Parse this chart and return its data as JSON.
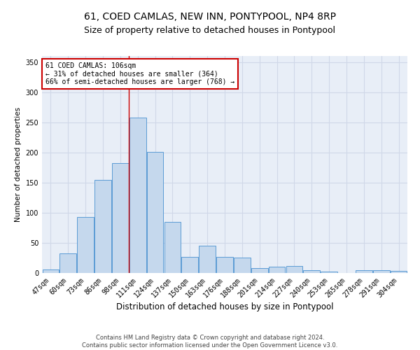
{
  "title": "61, COED CAMLAS, NEW INN, PONTYPOOL, NP4 8RP",
  "subtitle": "Size of property relative to detached houses in Pontypool",
  "xlabel": "Distribution of detached houses by size in Pontypool",
  "ylabel": "Number of detached properties",
  "categories": [
    "47sqm",
    "60sqm",
    "73sqm",
    "86sqm",
    "98sqm",
    "111sqm",
    "124sqm",
    "137sqm",
    "150sqm",
    "163sqm",
    "176sqm",
    "188sqm",
    "201sqm",
    "214sqm",
    "227sqm",
    "240sqm",
    "253sqm",
    "265sqm",
    "278sqm",
    "291sqm",
    "304sqm"
  ],
  "values": [
    6,
    32,
    93,
    155,
    182,
    258,
    201,
    85,
    27,
    45,
    27,
    26,
    8,
    10,
    12,
    5,
    2,
    0,
    5,
    5,
    3
  ],
  "bar_color": "#c5d8ed",
  "bar_edge_color": "#5b9bd5",
  "annotation_title": "61 COED CAMLAS: 106sqm",
  "annotation_line1": "← 31% of detached houses are smaller (364)",
  "annotation_line2": "66% of semi-detached houses are larger (768) →",
  "annotation_box_color": "#ffffff",
  "annotation_border_color": "#cc0000",
  "vline_color": "#cc0000",
  "vline_x_index": 4,
  "ylim": [
    0,
    360
  ],
  "yticks": [
    0,
    50,
    100,
    150,
    200,
    250,
    300,
    350
  ],
  "grid_color": "#d0d8e8",
  "background_color": "#e8eef7",
  "footer1": "Contains HM Land Registry data © Crown copyright and database right 2024.",
  "footer2": "Contains public sector information licensed under the Open Government Licence v3.0.",
  "title_fontsize": 10,
  "subtitle_fontsize": 9,
  "xlabel_fontsize": 8.5,
  "ylabel_fontsize": 7.5,
  "tick_fontsize": 7,
  "annotation_fontsize": 7,
  "footer_fontsize": 6
}
